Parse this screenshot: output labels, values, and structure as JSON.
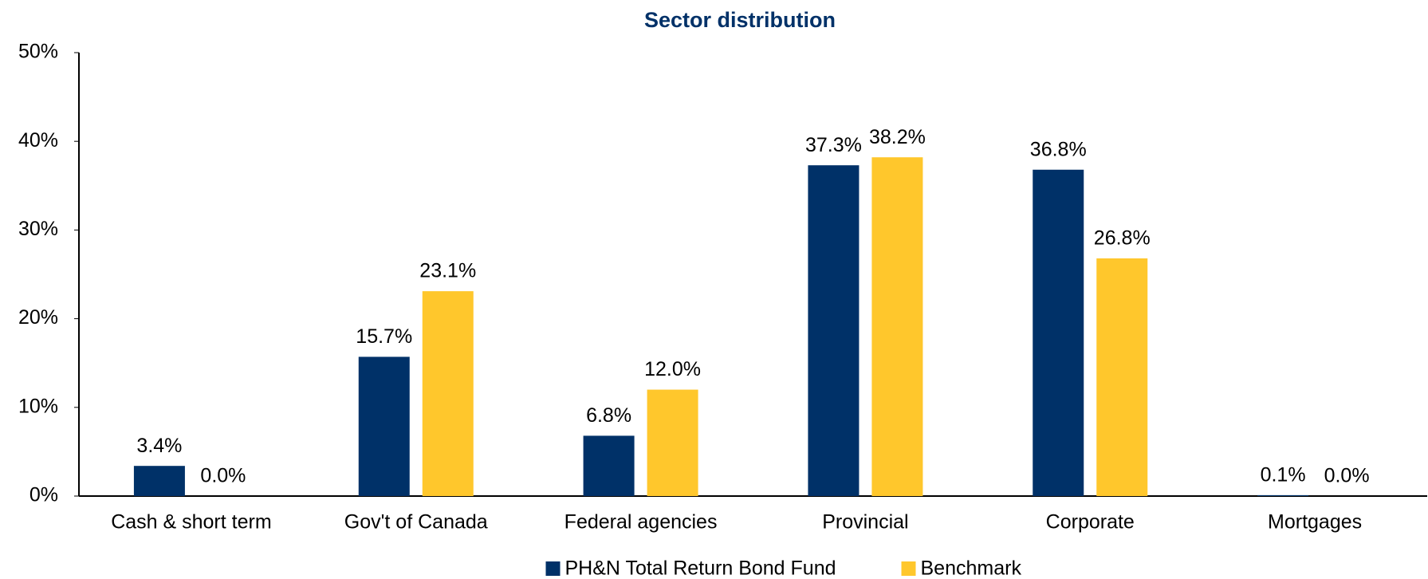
{
  "chart_data": {
    "type": "bar",
    "title": "Sector distribution",
    "categories": [
      "Cash & short term",
      "Gov't of Canada",
      "Federal agencies",
      "Provincial",
      "Corporate",
      "Mortgages"
    ],
    "series": [
      {
        "name": "PH&N Total Return Bond Fund",
        "color": "#003168",
        "values": [
          3.4,
          15.7,
          6.8,
          37.3,
          36.8,
          0.1
        ],
        "value_labels": [
          "3.4%",
          "15.7%",
          "6.8%",
          "37.3%",
          "36.8%",
          "0.1%"
        ]
      },
      {
        "name": "Benchmark",
        "color": "#FFC72C",
        "values": [
          0.0,
          23.1,
          12.0,
          38.2,
          26.8,
          0.0
        ],
        "value_labels": [
          "0.0%",
          "23.1%",
          "12.0%",
          "38.2%",
          "26.8%",
          "0.0%"
        ]
      }
    ],
    "ylim": [
      0,
      50
    ],
    "yticks": [
      {
        "value": 0,
        "label": "0%"
      },
      {
        "value": 10,
        "label": "10%"
      },
      {
        "value": 20,
        "label": "20%"
      },
      {
        "value": 30,
        "label": "30%"
      },
      {
        "value": 40,
        "label": "40%"
      },
      {
        "value": 50,
        "label": "50%"
      }
    ],
    "grid": false,
    "legend": "bottom"
  }
}
